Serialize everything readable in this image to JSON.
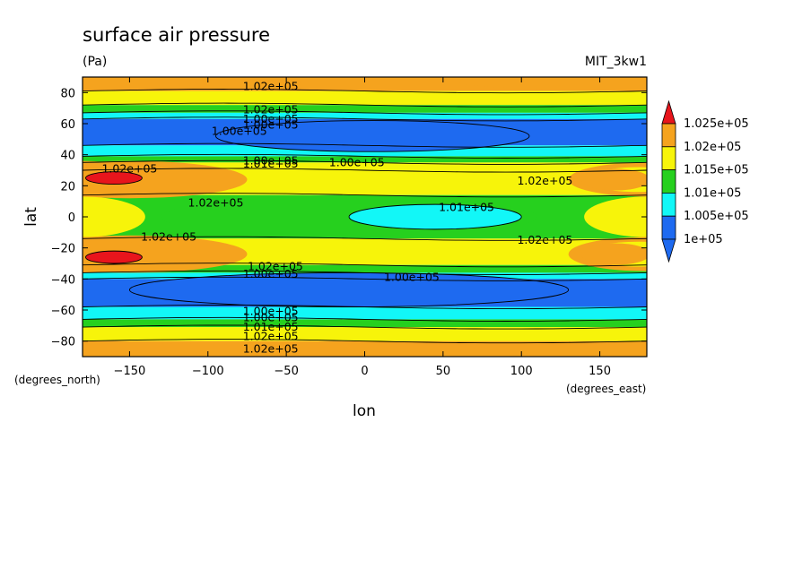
{
  "chart_data": {
    "type": "contour",
    "title": "surface air pressure",
    "subtitle": "(Pa)",
    "model": "MIT_3kw1",
    "xlabel": "lon",
    "ylabel": "lat",
    "x_unit": "(degrees_east)",
    "y_unit": "(degrees_north)",
    "xlim": [
      -180,
      180
    ],
    "ylim": [
      -90,
      90
    ],
    "x_ticks": [
      -150,
      -100,
      -50,
      0,
      50,
      100,
      150
    ],
    "y_ticks": [
      -80,
      -60,
      -40,
      -20,
      0,
      20,
      40,
      60,
      80
    ],
    "colorbar": {
      "levels": [
        "1.025e+05",
        "1.02e+05",
        "1.015e+05",
        "1.01e+05",
        "1.005e+05",
        "1e+05"
      ],
      "colors": [
        "#e8151c",
        "#f5a31e",
        "#f7f40a",
        "#26d01e",
        "#12f7f7",
        "#1e6af0"
      ],
      "extend_colors": {
        "high": "#e8151c",
        "low": "#1e6af0"
      }
    },
    "contour_labels": [
      {
        "text": "1.02e+05",
        "lon": -60,
        "lat": 84
      },
      {
        "text": "1.02e+05",
        "lon": -60,
        "lat": 69
      },
      {
        "text": "1.00e+05",
        "lon": -60,
        "lat": 63
      },
      {
        "text": "1.00e+05",
        "lon": -60,
        "lat": 59
      },
      {
        "text": "1.00e+05",
        "lon": -80,
        "lat": 55
      },
      {
        "text": "1.02e+05",
        "lon": -150,
        "lat": 31
      },
      {
        "text": "1.00e+05",
        "lon": -60,
        "lat": 36
      },
      {
        "text": "1.01e+05",
        "lon": -60,
        "lat": 34
      },
      {
        "text": "1.00e+05",
        "lon": -5,
        "lat": 35
      },
      {
        "text": "1.02e+05",
        "lon": 115,
        "lat": 23
      },
      {
        "text": "1.02e+05",
        "lon": -95,
        "lat": 9
      },
      {
        "text": "1.01e+05",
        "lon": 65,
        "lat": 6
      },
      {
        "text": "1.02e+05",
        "lon": -125,
        "lat": -13
      },
      {
        "text": "1.02e+05",
        "lon": 115,
        "lat": -15
      },
      {
        "text": "1.02e+05",
        "lon": -57,
        "lat": -32
      },
      {
        "text": "1.00e+05",
        "lon": -60,
        "lat": -37
      },
      {
        "text": "1.00e+05",
        "lon": 30,
        "lat": -39
      },
      {
        "text": "1.00e+05",
        "lon": -60,
        "lat": -61
      },
      {
        "text": "1.00e+05",
        "lon": -60,
        "lat": -65
      },
      {
        "text": "1.01e+05",
        "lon": -60,
        "lat": -71
      },
      {
        "text": "1.02e+05",
        "lon": -60,
        "lat": -77
      },
      {
        "text": "1.02e+05",
        "lon": -60,
        "lat": -85
      }
    ]
  }
}
